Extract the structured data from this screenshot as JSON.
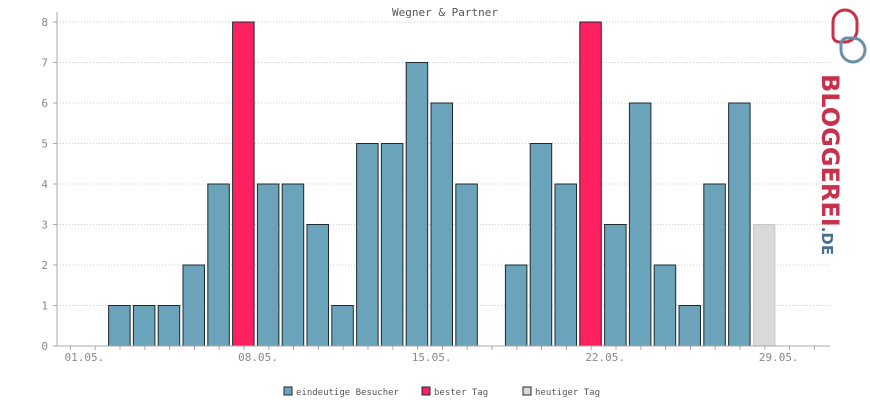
{
  "chart_data": {
    "type": "bar",
    "title": "Wegner & Partner",
    "ylim": [
      0,
      8
    ],
    "yticks": [
      0,
      1,
      2,
      3,
      4,
      5,
      6,
      7,
      8
    ],
    "xtick_labels": [
      {
        "day": 1,
        "label": "01.05."
      },
      {
        "day": 8,
        "label": "08.05."
      },
      {
        "day": 15,
        "label": "15.05."
      },
      {
        "day": 22,
        "label": "22.05."
      },
      {
        "day": 29,
        "label": "29.05."
      }
    ],
    "grid": true,
    "legend_position": "bottom",
    "days": [
      1,
      2,
      3,
      4,
      5,
      6,
      7,
      8,
      9,
      10,
      11,
      12,
      13,
      14,
      15,
      16,
      17,
      18,
      19,
      20,
      21,
      22,
      23,
      24,
      25,
      26,
      27,
      28,
      29,
      30,
      31
    ],
    "values": [
      0,
      1,
      1,
      1,
      2,
      4,
      8,
      4,
      4,
      3,
      1,
      5,
      5,
      7,
      6,
      4,
      0,
      2,
      5,
      4,
      8,
      3,
      6,
      2,
      1,
      4,
      6,
      3,
      0,
      0,
      0
    ],
    "categories": [
      "regular",
      "regular",
      "regular",
      "regular",
      "regular",
      "regular",
      "best",
      "regular",
      "regular",
      "regular",
      "regular",
      "regular",
      "regular",
      "regular",
      "regular",
      "regular",
      "regular",
      "regular",
      "regular",
      "regular",
      "best",
      "regular",
      "regular",
      "regular",
      "regular",
      "regular",
      "regular",
      "today",
      "regular",
      "regular",
      "regular"
    ],
    "series": [
      {
        "key": "regular",
        "name": "eindeutige Besucher",
        "color": "#6aa3ba"
      },
      {
        "key": "best",
        "name": "bester Tag",
        "color": "#ff2060"
      },
      {
        "key": "today",
        "name": "heutiger Tag",
        "color": "#d9d9d9"
      }
    ]
  },
  "logo": {
    "text_main": "BLOGGEREI",
    "text_suffix": ".DE",
    "color_main": "#c8304c",
    "color_suffix": "#4a6f8a"
  }
}
